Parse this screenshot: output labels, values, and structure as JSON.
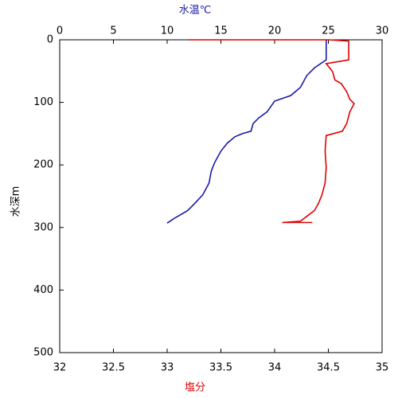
{
  "chart_data": {
    "type": "line",
    "x_label": "塩分",
    "x2_label": "水温℃",
    "y_label": "水深m",
    "xlim": [
      32,
      35
    ],
    "xticks": [
      32,
      32.5,
      33,
      33.5,
      34,
      34.5,
      35
    ],
    "x2lim": [
      0,
      30
    ],
    "x2ticks": [
      0,
      5,
      10,
      15,
      20,
      25,
      30
    ],
    "ylim": [
      0,
      500
    ],
    "yticks": [
      0,
      100,
      200,
      300,
      400,
      500
    ],
    "y_inverted": true,
    "x_label_color": "#e00000",
    "x2_label_color": "#1a1aa8",
    "series": [
      {
        "axis": "x2",
        "color": "#1a1aa8",
        "x": [
          24.8,
          24.8,
          23.7,
          23.0,
          22.4,
          21.5,
          20.0,
          19.3,
          18.5,
          18.0,
          17.8,
          17.0,
          16.3,
          15.6,
          15.0,
          14.4,
          14.1,
          13.9,
          13.3,
          12.6,
          11.9,
          10.6,
          10.0
        ],
        "y": [
          0,
          32,
          45,
          57,
          76,
          89,
          98,
          115,
          125,
          134,
          146,
          150,
          155,
          165,
          178,
          197,
          210,
          229,
          248,
          261,
          273,
          286,
          293
        ]
      },
      {
        "axis": "x",
        "color": "#e00000",
        "x": [
          33.2,
          34.5,
          34.69,
          34.69,
          34.48,
          34.54,
          34.56,
          34.62,
          34.67,
          34.7,
          34.74,
          34.7,
          34.67,
          34.63,
          34.48,
          34.47,
          34.48,
          34.47,
          34.44,
          34.41,
          34.37,
          34.3,
          34.24,
          34.07,
          34.35
        ],
        "y": [
          0,
          0,
          2,
          32,
          38,
          51,
          64,
          70,
          83,
          95,
          102,
          115,
          134,
          146,
          153,
          178,
          204,
          229,
          248,
          261,
          273,
          282,
          290,
          292,
          292
        ]
      }
    ]
  }
}
